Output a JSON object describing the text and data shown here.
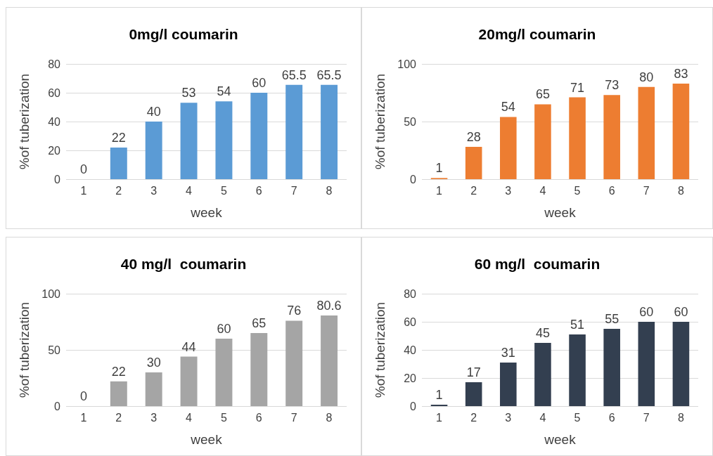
{
  "chart_data": [
    {
      "type": "bar",
      "title": "0mg/l coumarin",
      "xlabel": "week",
      "ylabel": "%of tuberization",
      "categories": [
        "1",
        "2",
        "3",
        "4",
        "5",
        "6",
        "7",
        "8"
      ],
      "values": [
        0,
        22,
        40,
        53,
        54,
        60,
        65.5,
        65.5
      ],
      "color": "#5b9bd5",
      "ylim": [
        0,
        80
      ],
      "yticks": [
        0,
        20,
        40,
        60,
        80
      ],
      "grid": "y",
      "data_labels": true
    },
    {
      "type": "bar",
      "title": "20mg/l coumarin",
      "xlabel": "week",
      "ylabel": "%of tuberization",
      "categories": [
        "1",
        "2",
        "3",
        "4",
        "5",
        "6",
        "7",
        "8"
      ],
      "values": [
        1,
        28,
        54,
        65,
        71,
        73,
        80,
        83
      ],
      "color": "#ed7d31",
      "ylim": [
        0,
        100
      ],
      "yticks": [
        0,
        50,
        100
      ],
      "grid": "y",
      "data_labels": true
    },
    {
      "type": "bar",
      "title": "40 mg/l  coumarin",
      "xlabel": "week",
      "ylabel": "%of tuberization",
      "categories": [
        "1",
        "2",
        "3",
        "4",
        "5",
        "6",
        "7",
        "8"
      ],
      "values": [
        0,
        22,
        30,
        44,
        60,
        65,
        76,
        80.6
      ],
      "color": "#a5a5a5",
      "ylim": [
        0,
        100
      ],
      "yticks": [
        0,
        50,
        100
      ],
      "grid": "y",
      "data_labels": true
    },
    {
      "type": "bar",
      "title": "60 mg/l  coumarin",
      "xlabel": "week",
      "ylabel": "%of tuberization",
      "categories": [
        "1",
        "2",
        "3",
        "4",
        "5",
        "6",
        "7",
        "8"
      ],
      "values": [
        1,
        17,
        31,
        45,
        51,
        55,
        60,
        60
      ],
      "color": "#333f50",
      "ylim": [
        0,
        80
      ],
      "yticks": [
        0,
        20,
        40,
        60,
        80
      ],
      "grid": "y",
      "data_labels": true
    }
  ]
}
